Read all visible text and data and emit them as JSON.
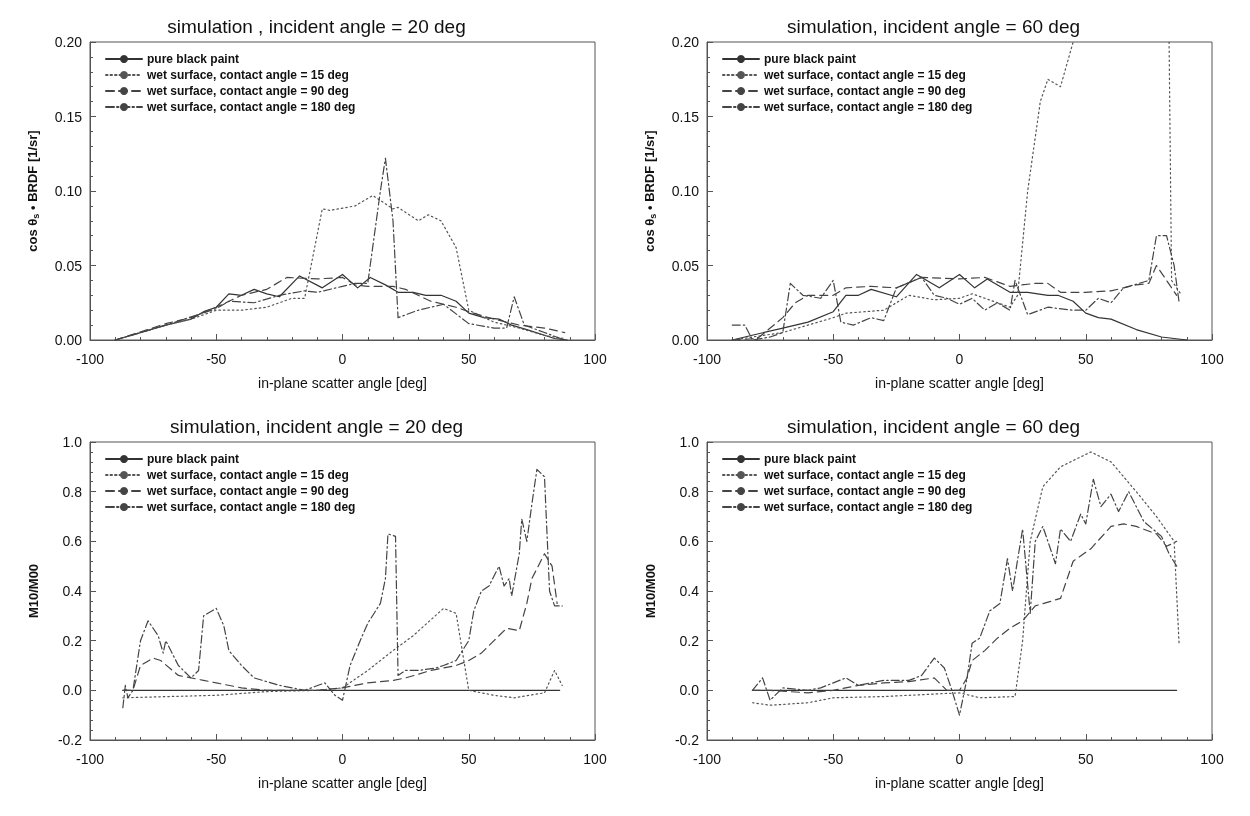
{
  "chart_data": [
    {
      "type": "line",
      "title": "simulation , incident angle = 20 deg",
      "xlabel": "in-plane scatter angle [deg]",
      "ylabel": "cos θ$_{s}$ • BRDF [1/sr]",
      "xlim": [
        -100,
        100
      ],
      "xticks": [
        -100,
        -50,
        0,
        50,
        100
      ],
      "ylim": [
        0,
        0.2
      ],
      "yticks": [
        {
          "value": 0,
          "label": "0.00"
        },
        0.05,
        {
          "value": 0.1,
          "label": "0.10"
        },
        0.15,
        {
          "value": 0.2,
          "label": "0.20"
        }
      ],
      "legend": "top left",
      "grid": false,
      "marker": "none",
      "series": [
        {
          "name": "pure black paint",
          "color": "#333333",
          "line_style": "solid",
          "x": [
            -90,
            -80,
            -70,
            -60,
            -55,
            -50,
            -45,
            -40,
            -35,
            -30,
            -25,
            -17,
            -8,
            0,
            6,
            11,
            17,
            22,
            28,
            33,
            39,
            45,
            50,
            56,
            62,
            67,
            73,
            84,
            89
          ],
          "values": [
            0,
            0.005,
            0.01,
            0.014,
            0.019,
            0.022,
            0.031,
            0.03,
            0.034,
            0.031,
            0.029,
            0.043,
            0.035,
            0.044,
            0.035,
            0.042,
            0.037,
            0.032,
            0.032,
            0.03,
            0.03,
            0.026,
            0.018,
            0.015,
            0.014,
            0.01,
            0.007,
            0.001,
            0
          ]
        },
        {
          "name": "wet surface, contact angle = 15 deg",
          "color": "#555555",
          "line_style": "dotted",
          "x": [
            -90,
            -70,
            -60,
            -50,
            -40,
            -30,
            -20,
            -15,
            -8,
            -5,
            5,
            12,
            20,
            22,
            30,
            34,
            39,
            45,
            50,
            60,
            70,
            80,
            88
          ],
          "values": [
            0,
            0.01,
            0.014,
            0.02,
            0.02,
            0.022,
            0.028,
            0.028,
            0.088,
            0.087,
            0.09,
            0.097,
            0.088,
            0.089,
            0.08,
            0.084,
            0.08,
            0.062,
            0.02,
            0.012,
            0.008,
            0.003,
            0.001
          ]
        },
        {
          "name": "wet surface, contact angle = 90 deg",
          "color": "#444444",
          "line_style": "dashed",
          "x": [
            -90,
            -70,
            -60,
            -50,
            -40,
            -30,
            -22,
            -10,
            0,
            5,
            10,
            20,
            25,
            35,
            45,
            50,
            60,
            70,
            75,
            80,
            88
          ],
          "values": [
            0,
            0.011,
            0.015,
            0.022,
            0.03,
            0.034,
            0.042,
            0.041,
            0.042,
            0.037,
            0.036,
            0.036,
            0.034,
            0.026,
            0.022,
            0.019,
            0.014,
            0.01,
            0.009,
            0.008,
            0.005
          ]
        },
        {
          "name": "wet surface, contact angle = 180 deg",
          "color": "#444444",
          "line_style": "dashdot",
          "x": [
            -90,
            -70,
            -50,
            -45,
            -35,
            -25,
            -15,
            -10,
            0,
            5,
            10,
            15,
            17,
            20,
            22,
            30,
            40,
            50,
            60,
            65,
            68,
            72,
            80,
            88
          ],
          "values": [
            0,
            0.01,
            0.021,
            0.026,
            0.025,
            0.03,
            0.033,
            0.032,
            0.036,
            0.038,
            0.038,
            0.1,
            0.122,
            0.08,
            0.015,
            0.02,
            0.024,
            0.011,
            0.008,
            0.008,
            0.029,
            0.01,
            0.005,
            0
          ]
        }
      ]
    },
    {
      "type": "line",
      "title": "simulation, incident angle = 60 deg",
      "xlabel": "in-plane scatter angle [deg]",
      "ylabel": "cos θ$_{s}$ • BRDF [1/sr]",
      "xlim": [
        -100,
        100
      ],
      "xticks": [
        -100,
        -50,
        0,
        50,
        100
      ],
      "ylim": [
        0,
        0.2
      ],
      "yticks": [
        {
          "value": 0,
          "label": "0.00"
        },
        0.05,
        {
          "value": 0.1,
          "label": "0.10"
        },
        0.15,
        {
          "value": 0.2,
          "label": "0.20"
        }
      ],
      "legend": "top left",
      "grid": false,
      "marker": "none",
      "series": [
        {
          "name": "pure black paint",
          "color": "#333333",
          "line_style": "solid",
          "x": [
            -90,
            -80,
            -70,
            -60,
            -50,
            -45,
            -40,
            -35,
            -25,
            -17,
            -8,
            0,
            6,
            11,
            20,
            27,
            35,
            39,
            45,
            50,
            55,
            60,
            70,
            80,
            90
          ],
          "values": [
            0,
            0.004,
            0.008,
            0.012,
            0.019,
            0.03,
            0.03,
            0.034,
            0.029,
            0.044,
            0.035,
            0.044,
            0.035,
            0.041,
            0.032,
            0.032,
            0.03,
            0.03,
            0.026,
            0.018,
            0.015,
            0.014,
            0.007,
            0.002,
            0
          ]
        },
        {
          "name": "wet surface, contact angle = 15 deg",
          "color": "#555555",
          "line_style": "dotted",
          "x": [
            -90,
            -70,
            -50,
            -45,
            -30,
            -20,
            -10,
            0,
            5,
            10,
            20,
            23,
            27,
            32,
            35,
            40,
            45,
            46,
            83,
            84,
            88
          ],
          "values": [
            0,
            0.005,
            0.015,
            0.018,
            0.02,
            0.03,
            0.027,
            0.028,
            0.031,
            0.028,
            0.022,
            0.03,
            0.1,
            0.16,
            0.175,
            0.17,
            0.2,
            null,
            0.2,
            0.04,
            0.03
          ]
        },
        {
          "name": "wet surface, contact angle = 90 deg",
          "color": "#444444",
          "line_style": "dashed",
          "x": [
            -90,
            -80,
            -70,
            -65,
            -60,
            -50,
            -45,
            -35,
            -25,
            -15,
            0,
            10,
            20,
            30,
            35,
            40,
            50,
            60,
            70,
            75,
            78,
            82,
            86
          ],
          "values": [
            0,
            0.001,
            0.015,
            0.025,
            0.03,
            0.03,
            0.035,
            0.036,
            0.035,
            0.042,
            0.041,
            0.042,
            0.036,
            0.038,
            0.038,
            0.032,
            0.032,
            0.033,
            0.037,
            0.038,
            0.05,
            0.04,
            0.03
          ]
        },
        {
          "name": "wet surface, contact angle = 180 deg",
          "color": "#444444",
          "line_style": "dashdot",
          "x": [
            -90,
            -85,
            -82,
            -75,
            -70,
            -67,
            -62,
            -55,
            -50,
            -47,
            -42,
            -35,
            -30,
            -25,
            -15,
            -10,
            -5,
            0,
            5,
            10,
            15,
            20,
            22,
            27,
            35,
            45,
            50,
            55,
            60,
            65,
            75,
            78,
            82,
            85,
            87
          ],
          "values": [
            0.01,
            0.01,
            0,
            0.002,
            0.005,
            0.038,
            0.03,
            0.028,
            0.04,
            0.012,
            0.01,
            0.015,
            0.013,
            0.035,
            0.042,
            0.03,
            0.028,
            0.024,
            0.028,
            0.02,
            0.025,
            0.02,
            0.04,
            0.017,
            0.022,
            0.02,
            0.02,
            0.028,
            0.025,
            0.035,
            0.04,
            0.07,
            0.07,
            0.05,
            0.025
          ]
        }
      ]
    },
    {
      "type": "line",
      "title": "simulation, incident angle = 20 deg",
      "xlabel": "in-plane scatter angle [deg]",
      "ylabel": "M10/M00",
      "xlim": [
        -100,
        100
      ],
      "xticks": [
        -100,
        -50,
        0,
        50,
        100
      ],
      "ylim": [
        -0.2,
        1.0
      ],
      "yticks": [
        -0.2,
        {
          "value": 0,
          "label": "0.0"
        },
        0.2,
        0.4,
        0.6,
        0.8,
        {
          "value": 1,
          "label": "1.0"
        }
      ],
      "legend": "top left",
      "grid": false,
      "marker": "none",
      "series": [
        {
          "name": "pure black paint",
          "color": "#333333",
          "line_style": "solid",
          "x": [
            -87,
            86
          ],
          "values": [
            0,
            0
          ]
        },
        {
          "name": "wet surface, contact angle = 15 deg",
          "color": "#555555",
          "line_style": "dotted",
          "x": [
            -87,
            -50,
            -30,
            -10,
            0,
            10,
            20,
            28,
            40,
            45,
            50,
            60,
            68,
            80,
            84,
            87
          ],
          "values": [
            -0.03,
            -0.02,
            -0.005,
            0,
            0.01,
            0.08,
            0.16,
            0.22,
            0.33,
            0.31,
            0,
            -0.02,
            -0.03,
            -0.01,
            0.08,
            0.02
          ]
        },
        {
          "name": "wet surface, contact angle = 90 deg",
          "color": "#444444",
          "line_style": "dashed",
          "x": [
            -87,
            -83,
            -80,
            -75,
            -72,
            -65,
            -55,
            -50,
            -40,
            -30,
            -20,
            -10,
            0,
            10,
            20,
            25,
            35,
            45,
            50,
            55,
            60,
            65,
            70,
            73,
            75,
            80,
            83,
            85
          ],
          "values": [
            0,
            0,
            0.1,
            0.13,
            0.12,
            0.06,
            0.04,
            0.03,
            0.01,
            0,
            0,
            0,
            0.01,
            0.03,
            0.04,
            0.05,
            0.08,
            0.1,
            0.12,
            0.15,
            0.2,
            0.25,
            0.24,
            0.35,
            0.45,
            0.55,
            0.5,
            0.35
          ]
        },
        {
          "name": "wet surface, contact angle = 180 deg",
          "color": "#444444",
          "line_style": "dashdot",
          "x": [
            -87,
            -86,
            -85,
            -83,
            -80,
            -77,
            -75,
            -73,
            -71,
            -70,
            -68,
            -65,
            -60,
            -57,
            -55,
            -50,
            -47,
            -45,
            -40,
            -35,
            -25,
            -15,
            -7,
            -3,
            0,
            3,
            7,
            10,
            15,
            17,
            18,
            21,
            22,
            25,
            30,
            37,
            40,
            45,
            50,
            52,
            55,
            58,
            62,
            64,
            66,
            67,
            70,
            71,
            73,
            75,
            77,
            80,
            82,
            84,
            87
          ],
          "values": [
            -0.07,
            0.02,
            -0.03,
            0,
            0.2,
            0.28,
            0.25,
            0.22,
            0.15,
            0.2,
            0.16,
            0.1,
            0.05,
            0.08,
            0.3,
            0.33,
            0.26,
            0.16,
            0.1,
            0.05,
            0.02,
            0,
            0.03,
            -0.02,
            -0.04,
            0.1,
            0.2,
            0.27,
            0.35,
            0.45,
            0.63,
            0.62,
            0.06,
            0.08,
            0.08,
            0.09,
            0.1,
            0.12,
            0.2,
            0.32,
            0.4,
            0.42,
            0.5,
            0.42,
            0.45,
            0.38,
            0.55,
            0.69,
            0.6,
            0.75,
            0.89,
            0.86,
            0.4,
            0.34,
            0.34
          ]
        }
      ]
    },
    {
      "type": "line",
      "title": "simulation, incident angle = 60 deg",
      "xlabel": "in-plane scatter angle [deg]",
      "ylabel": "M10/M00",
      "xlim": [
        -100,
        100
      ],
      "xticks": [
        -100,
        -50,
        0,
        50,
        100
      ],
      "ylim": [
        -0.2,
        1.0
      ],
      "yticks": [
        -0.2,
        {
          "value": 0,
          "label": "0.0"
        },
        0.2,
        0.4,
        0.6,
        0.8,
        {
          "value": 1,
          "label": "1.0"
        }
      ],
      "legend": "top left",
      "grid": false,
      "marker": "none",
      "series": [
        {
          "name": "pure black paint",
          "color": "#333333",
          "line_style": "solid",
          "x": [
            -82,
            86
          ],
          "values": [
            0,
            0
          ]
        },
        {
          "name": "wet surface, contact angle = 15 deg",
          "color": "#555555",
          "line_style": "dotted",
          "x": [
            -82,
            -75,
            -60,
            -50,
            -30,
            -10,
            0,
            8,
            22,
            25,
            28,
            33,
            40,
            52,
            60,
            70,
            78,
            85,
            87
          ],
          "values": [
            -0.05,
            -0.06,
            -0.05,
            -0.03,
            -0.025,
            -0.015,
            -0.01,
            -0.03,
            -0.025,
            0.2,
            0.6,
            0.82,
            0.9,
            0.96,
            0.92,
            0.8,
            0.7,
            0.6,
            0.18
          ]
        },
        {
          "name": "wet surface, contact angle = 90 deg",
          "color": "#444444",
          "line_style": "dashed",
          "x": [
            -82,
            -75,
            -60,
            -50,
            -40,
            -30,
            -20,
            -10,
            -5,
            0,
            3,
            5,
            10,
            15,
            20,
            25,
            30,
            40,
            45,
            52,
            60,
            65,
            70,
            78,
            82,
            86
          ],
          "values": [
            0,
            0,
            -0.01,
            0,
            0.02,
            0.03,
            0.035,
            0.05,
            0,
            0,
            0.05,
            0.12,
            0.16,
            0.21,
            0.25,
            0.28,
            0.34,
            0.37,
            0.52,
            0.57,
            0.66,
            0.67,
            0.66,
            0.63,
            0.58,
            0.6
          ]
        },
        {
          "name": "wet surface, contact angle = 180 deg",
          "color": "#444444",
          "line_style": "dashdot",
          "x": [
            -82,
            -78,
            -75,
            -70,
            -60,
            -55,
            -45,
            -40,
            -30,
            -20,
            -15,
            -10,
            -6,
            -3,
            0,
            3,
            5,
            8,
            12,
            16,
            19,
            21,
            25,
            28,
            30,
            33,
            38,
            40,
            44,
            48,
            50,
            53,
            56,
            60,
            63,
            67,
            73,
            80,
            83,
            86
          ],
          "values": [
            0,
            0.05,
            -0.04,
            0.01,
            0,
            0.01,
            0.05,
            0.02,
            0.04,
            0.04,
            0.06,
            0.13,
            0.09,
            0,
            -0.1,
            0.05,
            0.19,
            0.21,
            0.32,
            0.35,
            0.53,
            0.4,
            0.65,
            0.31,
            0.6,
            0.66,
            0.51,
            0.65,
            0.6,
            0.71,
            0.67,
            0.85,
            0.74,
            0.79,
            0.72,
            0.8,
            0.68,
            0.62,
            0.55,
            0.5
          ]
        }
      ]
    }
  ]
}
